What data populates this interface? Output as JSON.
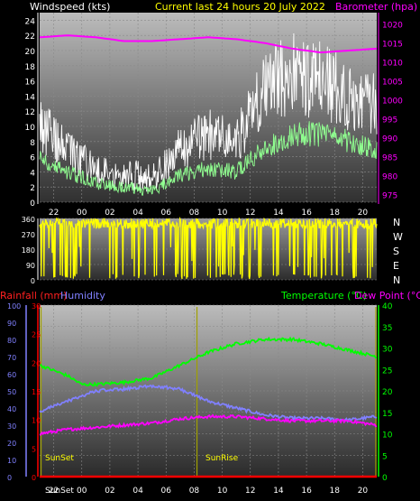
{
  "colors": {
    "wind": "#ffffff",
    "wind_avg": "#90ff90",
    "barometer": "#ff00ff",
    "direction": "#ffff00",
    "rain": "#ff0000",
    "humidity": "#8080ff",
    "temperature": "#00ff00",
    "dew_point": "#ff00ff",
    "sun_marker": "#a0a000",
    "title_center": "#ffff00",
    "axis": "#ffffff"
  },
  "header": {
    "windspeed_label": "Windspeed (kts)",
    "title": "Current last 24 hours 20 July 2022",
    "barometer_label": "Barometer (hpa)"
  },
  "bottom_header": {
    "rainfall_label": "Rainfall (mm)",
    "humidity_label": "Humidity",
    "temperature_label": "Temperature (°C)",
    "dew_point_label": "Dew Point (°C)"
  },
  "compass": [
    "N",
    "W",
    "S",
    "E",
    "N"
  ],
  "sun_events": [
    "SunSet",
    "SunRise",
    "SunSet"
  ],
  "chart_data": [
    {
      "type": "line",
      "title": "Current last 24 hours 20 July 2022",
      "x_tick_labels": [
        "22",
        "00",
        "02",
        "04",
        "06",
        "08",
        "10",
        "12",
        "14",
        "16",
        "18",
        "20"
      ],
      "x_range_hours": [
        0,
        24
      ],
      "left_axis": {
        "label": "Windspeed (kts)",
        "range": [
          0,
          25
        ],
        "ticks": [
          0,
          2,
          4,
          6,
          8,
          10,
          12,
          14,
          16,
          18,
          20,
          22,
          24
        ]
      },
      "right_axis": {
        "label": "Barometer (hpa)",
        "range": [
          973,
          1023
        ],
        "ticks": [
          975,
          980,
          985,
          990,
          995,
          1000,
          1005,
          1010,
          1015,
          1020
        ]
      },
      "series": [
        {
          "name": "Barometer",
          "axis": "right",
          "hour": [
            0,
            2,
            4,
            6,
            8,
            10,
            12,
            14,
            16,
            18,
            20,
            24
          ],
          "values": [
            1016.5,
            1017,
            1016.5,
            1015.5,
            1015.5,
            1016,
            1016.5,
            1016,
            1015,
            1013.5,
            1012.5,
            1013.5
          ]
        },
        {
          "axis": "left",
          "hour": [
            0,
            2,
            4,
            6,
            8,
            10,
            12,
            14,
            16,
            18,
            20,
            22,
            24
          ],
          "values": [
            10,
            7,
            4,
            4,
            3,
            7,
            9,
            8,
            15,
            17,
            16,
            14,
            13
          ]
        },
        {
          "axis": "left",
          "hour": [
            0,
            2,
            4,
            6,
            8,
            10,
            12,
            14,
            16,
            18,
            20,
            22,
            24
          ],
          "values": [
            6,
            4,
            2.5,
            2,
            1.5,
            3.5,
            4.5,
            4,
            7,
            9,
            9,
            8,
            7
          ]
        }
      ]
    },
    {
      "type": "scatter",
      "y_range": [
        0,
        360
      ],
      "y_ticks": [
        0,
        90,
        180,
        270,
        360
      ],
      "x_range_hours": [
        0,
        24
      ],
      "typical_direction_deg": 330
    },
    {
      "type": "line",
      "x_tick_labels": [
        "22",
        "00",
        "02",
        "04",
        "06",
        "08",
        "10",
        "12",
        "14",
        "16",
        "18",
        "20"
      ],
      "x_range_hours": [
        0,
        24
      ],
      "axes": {
        "humidity": {
          "label": "Humidity",
          "range": [
            0,
            100
          ],
          "ticks": [
            0,
            10,
            20,
            30,
            40,
            50,
            60,
            70,
            80,
            90,
            100
          ]
        },
        "rainfall": {
          "label": "Rainfall (mm)",
          "range": [
            0,
            30
          ],
          "ticks": [
            0,
            5,
            10,
            15,
            20,
            25,
            30
          ]
        },
        "temperature": {
          "label": "Temperature (°C)",
          "range": [
            0,
            40
          ],
          "ticks": [
            0,
            5,
            10,
            15,
            20,
            25,
            30,
            35,
            40
          ]
        }
      },
      "series": [
        {
          "name": "Temperature",
          "axis": "temperature",
          "hour": [
            0,
            2,
            3,
            4,
            6,
            8,
            10,
            12,
            14,
            16,
            18,
            20,
            22,
            24
          ],
          "values": [
            26,
            23.5,
            21.5,
            21.5,
            22,
            23,
            26,
            29,
            31,
            32,
            32,
            31,
            29.5,
            28
          ]
        },
        {
          "name": "Humidity",
          "axis": "humidity",
          "hour": [
            0,
            2,
            4,
            6,
            8,
            10,
            12,
            14,
            16,
            18,
            20,
            22,
            24
          ],
          "values": [
            38,
            44,
            50,
            51,
            53,
            51,
            44,
            40,
            36,
            34,
            34,
            33,
            35
          ]
        },
        {
          "name": "Dew Point",
          "axis": "temperature",
          "hour": [
            0,
            2,
            4,
            6,
            8,
            10,
            12,
            14,
            16,
            18,
            20,
            22,
            24
          ],
          "values": [
            10,
            11,
            11.5,
            12,
            12.5,
            13.5,
            14,
            14,
            13.5,
            13,
            13,
            13,
            12
          ]
        },
        {
          "name": "Rainfall",
          "axis": "rainfall",
          "hour": [
            0,
            24
          ],
          "values": [
            0,
            0
          ]
        }
      ],
      "sun_events": [
        {
          "label": "SunSet",
          "hour": 0.1
        },
        {
          "label": "SunRise",
          "hour": 11.2
        },
        {
          "label": "SunSet",
          "hour": 24
        }
      ]
    }
  ]
}
